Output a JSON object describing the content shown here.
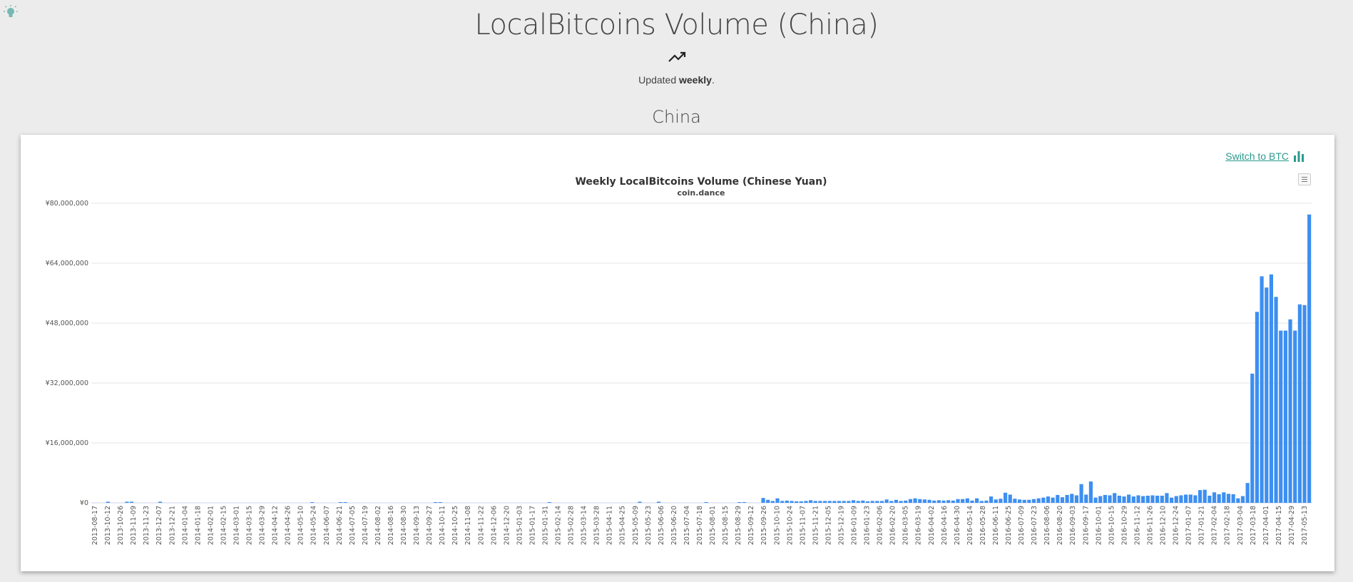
{
  "page": {
    "title": "LocalBitcoins Volume (China)",
    "updated_prefix": "Updated ",
    "updated_frequency": "weekly",
    "updated_suffix": ".",
    "region": "China",
    "switch_label": "Switch to BTC",
    "icons": {
      "bulb": "lightbulb-icon",
      "trend": "trending-up-icon",
      "bars": "bar-chart-icon",
      "menu": "hamburger-menu-icon"
    },
    "colors": {
      "accent": "#2a9a8c",
      "bar": "#3d8ff0",
      "background": "#ececec"
    }
  },
  "chart_data": {
    "type": "bar",
    "title": "Weekly LocalBitcoins Volume (Chinese Yuan)",
    "subtitle": "coin.dance",
    "xlabel": "",
    "ylabel": "",
    "ylim": [
      0,
      80000000
    ],
    "y_ticks": [
      0,
      16000000,
      32000000,
      48000000,
      64000000,
      80000000
    ],
    "y_tick_labels": [
      "¥0",
      "¥16,000,000",
      "¥32,000,000",
      "¥48,000,000",
      "¥64,000,000",
      "¥80,000,000"
    ],
    "grid": true,
    "legend": "none",
    "x_tick_labels": [
      "2013-08-17",
      "2013-10-12",
      "2013-10-26",
      "2013-11-09",
      "2013-11-23",
      "2013-12-07",
      "2013-12-21",
      "2014-01-04",
      "2014-01-18",
      "2014-02-01",
      "2014-02-15",
      "2014-03-01",
      "2014-03-15",
      "2014-03-29",
      "2014-04-12",
      "2014-04-26",
      "2014-05-10",
      "2014-05-24",
      "2014-06-07",
      "2014-06-21",
      "2014-07-05",
      "2014-07-19",
      "2014-08-02",
      "2014-08-16",
      "2014-08-30",
      "2014-09-13",
      "2014-09-27",
      "2014-10-11",
      "2014-10-25",
      "2014-11-08",
      "2014-11-22",
      "2014-12-06",
      "2014-12-20",
      "2015-01-03",
      "2015-01-17",
      "2015-01-31",
      "2015-02-14",
      "2015-02-28",
      "2015-03-14",
      "2015-03-28",
      "2015-04-11",
      "2015-04-25",
      "2015-05-09",
      "2015-05-23",
      "2015-06-06",
      "2015-06-20",
      "2015-07-04",
      "2015-07-18",
      "2015-08-01",
      "2015-08-15",
      "2015-08-29",
      "2015-09-12",
      "2015-09-26",
      "2015-10-10",
      "2015-10-24",
      "2015-11-07",
      "2015-11-21",
      "2015-12-05",
      "2015-12-19",
      "2016-01-09",
      "2016-01-23",
      "2016-02-06",
      "2016-02-20",
      "2016-03-05",
      "2016-03-19",
      "2016-04-02",
      "2016-04-16",
      "2016-04-30",
      "2016-05-14",
      "2016-05-28",
      "2016-06-11",
      "2016-06-25",
      "2016-07-09",
      "2016-07-23",
      "2016-08-06",
      "2016-08-20",
      "2016-09-03",
      "2016-09-17",
      "2016-10-01",
      "2016-10-15",
      "2016-10-29",
      "2016-11-12",
      "2016-11-26",
      "2016-12-10",
      "2016-12-24",
      "2017-01-07",
      "2017-01-21",
      "2017-02-04",
      "2017-02-18",
      "2017-03-04",
      "2017-03-18",
      "2017-04-01",
      "2017-04-15",
      "2017-04-29",
      "2017-05-13"
    ],
    "values": [
      0,
      0,
      0,
      300000,
      0,
      0,
      0,
      300000,
      300000,
      0,
      0,
      0,
      0,
      0,
      300000,
      0,
      0,
      0,
      0,
      0,
      0,
      0,
      0,
      0,
      0,
      0,
      0,
      0,
      0,
      0,
      0,
      0,
      0,
      0,
      0,
      0,
      0,
      0,
      0,
      0,
      0,
      0,
      0,
      0,
      0,
      0,
      100000,
      0,
      0,
      0,
      0,
      0,
      100000,
      100000,
      0,
      0,
      0,
      0,
      0,
      0,
      0,
      0,
      0,
      0,
      0,
      0,
      0,
      0,
      0,
      0,
      0,
      0,
      100000,
      100000,
      0,
      0,
      0,
      0,
      0,
      0,
      0,
      0,
      0,
      0,
      0,
      0,
      0,
      0,
      0,
      0,
      0,
      0,
      0,
      0,
      0,
      0,
      100000,
      0,
      0,
      0,
      0,
      0,
      0,
      0,
      0,
      0,
      0,
      0,
      0,
      0,
      0,
      0,
      0,
      0,
      0,
      300000,
      0,
      0,
      0,
      300000,
      0,
      0,
      0,
      0,
      0,
      0,
      0,
      0,
      0,
      200000,
      0,
      0,
      0,
      0,
      0,
      0,
      100000,
      200000,
      0,
      0,
      0,
      1300000,
      800000,
      500000,
      1200000,
      500000,
      600000,
      500000,
      400000,
      400000,
      500000,
      700000,
      500000,
      500000,
      500000,
      500000,
      500000,
      500000,
      500000,
      500000,
      700000,
      500000,
      600000,
      400000,
      500000,
      500000,
      500000,
      900000,
      500000,
      800000,
      500000,
      600000,
      1000000,
      1200000,
      1000000,
      900000,
      800000,
      600000,
      700000,
      600000,
      700000,
      600000,
      1000000,
      1000000,
      1200000,
      600000,
      1200000,
      500000,
      600000,
      1700000,
      900000,
      1100000,
      2700000,
      2200000,
      1100000,
      900000,
      800000,
      800000,
      1000000,
      1200000,
      1400000,
      1700000,
      1400000,
      2100000,
      1500000,
      2100000,
      2400000,
      2000000,
      5000000,
      2200000,
      5700000,
      1400000,
      1800000,
      2100000,
      2000000,
      2600000,
      1900000,
      1700000,
      2200000,
      1700000,
      2000000,
      1800000,
      1900000,
      2000000,
      1900000,
      1900000,
      2600000,
      1400000,
      1800000,
      2000000,
      2200000,
      2200000,
      2000000,
      3400000,
      3500000,
      1900000,
      2800000,
      2300000,
      2800000,
      2400000,
      2300000,
      1200000,
      1800000,
      5300000,
      34500000,
      51000000,
      60500000,
      57500000,
      61000000,
      55000000,
      46000000,
      46000000,
      49000000,
      46000000,
      53000000,
      52800000,
      77000000
    ]
  }
}
